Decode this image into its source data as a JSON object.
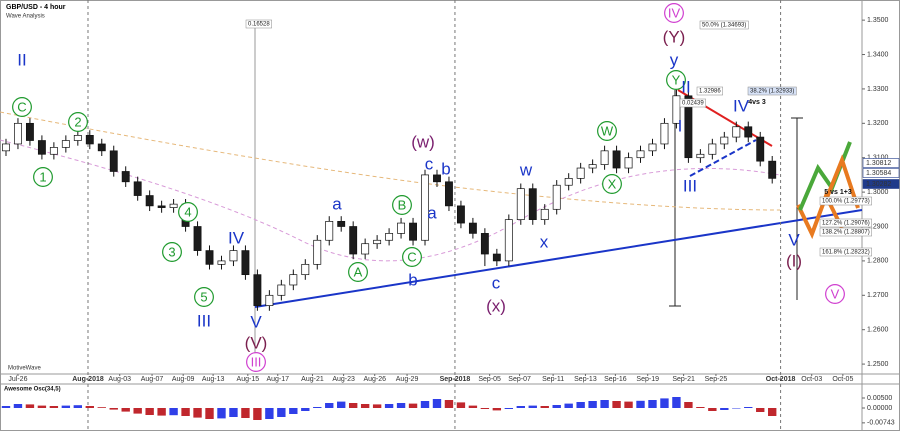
{
  "chart_data": {
    "type": "candlestick",
    "title": "GBP/USD - 4 hour",
    "subtitle": "Wave Analysis",
    "watermark": "MotiveWave",
    "up_color": "#ffffff",
    "down_color": "#1c1c1c",
    "series": {
      "open": [
        1.312,
        1.314,
        1.32,
        1.315,
        1.311,
        1.313,
        1.315,
        1.3165,
        1.314,
        1.312,
        1.306,
        1.303,
        1.299,
        1.296,
        1.2955,
        1.2965,
        1.29,
        1.283,
        1.279,
        1.28,
        1.283,
        1.276,
        1.267,
        1.27,
        1.273,
        1.276,
        1.279,
        1.286,
        1.2915,
        1.29,
        1.282,
        1.285,
        1.286,
        1.288,
        1.291,
        1.286,
        1.305,
        1.303,
        1.296,
        1.291,
        1.288,
        1.282,
        1.28,
        1.292,
        1.301,
        1.292,
        1.295,
        1.302,
        1.304,
        1.307,
        1.308,
        1.312,
        1.307,
        1.31,
        1.312,
        1.314,
        1.32,
        1.328,
        1.31,
        1.311,
        1.314,
        1.316,
        1.319,
        1.316,
        1.309
      ],
      "high": [
        1.3155,
        1.3215,
        1.3215,
        1.3165,
        1.3145,
        1.3165,
        1.318,
        1.318,
        1.3155,
        1.3135,
        1.3075,
        1.3045,
        1.3005,
        1.2975,
        1.298,
        1.298,
        1.2915,
        1.2845,
        1.2815,
        1.2845,
        1.2845,
        1.2775,
        1.2715,
        1.2745,
        1.2775,
        1.2805,
        1.2875,
        1.293,
        1.293,
        1.2915,
        1.2865,
        1.2875,
        1.2895,
        1.2925,
        1.2925,
        1.3065,
        1.3065,
        1.3045,
        1.2975,
        1.2925,
        1.2895,
        1.2835,
        1.2935,
        1.3025,
        1.3025,
        1.2965,
        1.3035,
        1.3055,
        1.3085,
        1.3095,
        1.3135,
        1.3135,
        1.3115,
        1.3135,
        1.3155,
        1.3215,
        1.33,
        1.3295,
        1.3125,
        1.3155,
        1.3175,
        1.3205,
        1.3205,
        1.3175,
        1.3105
      ],
      "low": [
        1.3105,
        1.3125,
        1.3135,
        1.3095,
        1.3095,
        1.3115,
        1.3135,
        1.3125,
        1.3105,
        1.3045,
        1.3015,
        1.2975,
        1.2945,
        1.294,
        1.294,
        1.2885,
        1.2815,
        1.2775,
        1.2775,
        1.2785,
        1.2745,
        1.2655,
        1.2655,
        1.2685,
        1.2715,
        1.2745,
        1.2775,
        1.2845,
        1.2885,
        1.2805,
        1.2805,
        1.2835,
        1.2845,
        1.2865,
        1.2845,
        1.2845,
        1.3015,
        1.2945,
        1.2895,
        1.2865,
        1.2785,
        1.2785,
        1.2785,
        1.2905,
        1.2905,
        1.2905,
        1.2935,
        1.3005,
        1.3025,
        1.3055,
        1.3065,
        1.3055,
        1.3055,
        1.3085,
        1.3105,
        1.3125,
        1.3185,
        1.3085,
        1.3085,
        1.3095,
        1.3125,
        1.3145,
        1.3145,
        1.3075,
        1.3025
      ],
      "close": [
        1.314,
        1.32,
        1.315,
        1.311,
        1.313,
        1.315,
        1.3165,
        1.314,
        1.312,
        1.306,
        1.303,
        1.299,
        1.296,
        1.2955,
        1.2965,
        1.29,
        1.283,
        1.279,
        1.28,
        1.283,
        1.276,
        1.267,
        1.27,
        1.273,
        1.276,
        1.279,
        1.286,
        1.2915,
        1.29,
        1.282,
        1.285,
        1.286,
        1.288,
        1.291,
        1.286,
        1.305,
        1.303,
        1.296,
        1.291,
        1.288,
        1.282,
        1.28,
        1.292,
        1.301,
        1.292,
        1.295,
        1.302,
        1.304,
        1.307,
        1.308,
        1.312,
        1.307,
        1.31,
        1.312,
        1.314,
        1.32,
        1.328,
        1.31,
        1.311,
        1.314,
        1.316,
        1.319,
        1.316,
        1.309,
        1.304
      ]
    },
    "ylim": [
      1.2477,
      1.3544
    ],
    "yticks": [
      {
        "value": 1.35,
        "label": "1.3500"
      },
      {
        "value": 1.34,
        "label": "1.3400"
      },
      {
        "value": 1.33,
        "label": "1.3300"
      },
      {
        "value": 1.32,
        "label": "1.3200"
      },
      {
        "value": 1.31,
        "label": "1.3100"
      },
      {
        "value": 1.3,
        "label": "1.3000"
      },
      {
        "value": 1.29,
        "label": "1.2900"
      },
      {
        "value": 1.28,
        "label": "1.2800"
      },
      {
        "value": 1.27,
        "label": "1.2700"
      },
      {
        "value": 1.26,
        "label": "1.2600"
      },
      {
        "value": 1.25,
        "label": "1.2500"
      }
    ],
    "xlim": [
      -0.5,
      71.5
    ],
    "xticks": [
      {
        "value": 1,
        "label": "Jul-26"
      },
      {
        "value": 9.5,
        "label": "Aug-03"
      },
      {
        "value": 12.2,
        "label": "Aug-07"
      },
      {
        "value": 14.8,
        "label": "Aug-09"
      },
      {
        "value": 17.3,
        "label": "Aug-13"
      },
      {
        "value": 20.2,
        "label": "Aug-15"
      },
      {
        "value": 22.7,
        "label": "Aug-17"
      },
      {
        "value": 25.6,
        "label": "Aug-21"
      },
      {
        "value": 28.2,
        "label": "Aug-23"
      },
      {
        "value": 30.8,
        "label": "Aug-26"
      },
      {
        "value": 33.5,
        "label": "Aug-29"
      },
      {
        "value": 40.4,
        "label": "Sep-05"
      },
      {
        "value": 42.9,
        "label": "Sep-07"
      },
      {
        "value": 45.7,
        "label": "Sep-11"
      },
      {
        "value": 48.4,
        "label": "Sep-13"
      },
      {
        "value": 50.9,
        "label": "Sep-16"
      },
      {
        "value": 53.6,
        "label": "Sep-19"
      },
      {
        "value": 56.6,
        "label": "Sep-21"
      },
      {
        "value": 59.3,
        "label": "Sep-25"
      },
      {
        "value": 67.3,
        "label": "Oct-03"
      },
      {
        "value": 69.9,
        "label": "Oct-05"
      }
    ],
    "month_xticks": [
      {
        "value": 6.85,
        "label": "Aug-2018"
      },
      {
        "value": 37.5,
        "label": "Sep-2018"
      },
      {
        "value": 64.7,
        "label": "Oct-2018"
      }
    ],
    "price_labels": [
      "1.30812",
      "1.30584",
      "1.30282"
    ],
    "fib_labels": [
      "50.0% (1.34693)",
      "1.32986",
      "38.2% (1.32933)",
      "0.02439",
      "0.16528",
      "100.0% (1.29773)",
      "127.2% (1.29076)",
      "138.2% (1.28807)",
      "161.8% (1.28232)"
    ],
    "annotations": [
      {
        "text": "II",
        "color": "#1a35c8",
        "circled": false
      },
      {
        "text": "C",
        "color": "#1f9a2e",
        "circled": true
      },
      {
        "text": "1",
        "color": "#1f9a2e",
        "circled": true
      },
      {
        "text": "2",
        "color": "#1f9a2e",
        "circled": true
      },
      {
        "text": "3",
        "color": "#1f9a2e",
        "circled": true
      },
      {
        "text": "4",
        "color": "#1f9a2e",
        "circled": true
      },
      {
        "text": "5",
        "color": "#1f9a2e",
        "circled": true
      },
      {
        "text": "III",
        "color": "#1a35c8",
        "circled": false
      },
      {
        "text": "IV",
        "color": "#1a35c8",
        "circled": false
      },
      {
        "text": "V",
        "color": "#1a35c8",
        "circled": false
      },
      {
        "text": "(V)",
        "color": "#7a1f4e",
        "circled": false
      },
      {
        "text": "III",
        "color": "#d040d0",
        "circled": true
      },
      {
        "text": "a",
        "color": "#1a35c8",
        "circled": false
      },
      {
        "text": "A",
        "color": "#1f9a2e",
        "circled": true
      },
      {
        "text": "b",
        "color": "#1a35c8",
        "circled": false
      },
      {
        "text": "B",
        "color": "#1f9a2e",
        "circled": true
      },
      {
        "text": "C",
        "color": "#1f9a2e",
        "circled": true
      },
      {
        "text": "a",
        "color": "#1a35c8",
        "circled": false
      },
      {
        "text": "(w)",
        "color": "#7a1f6e",
        "circled": false
      },
      {
        "text": "c",
        "color": "#1a35c8",
        "circled": false
      },
      {
        "text": "b",
        "color": "#1a35c8",
        "circled": false
      },
      {
        "text": "w",
        "color": "#1a35c8",
        "circled": false
      },
      {
        "text": "x",
        "color": "#1a35c8",
        "circled": false
      },
      {
        "text": "c",
        "color": "#1a35c8",
        "circled": false
      },
      {
        "text": "(x)",
        "color": "#7a1f6e",
        "circled": false
      },
      {
        "text": "W",
        "color": "#1f9a2e",
        "circled": true
      },
      {
        "text": "X",
        "color": "#1f9a2e",
        "circled": true
      },
      {
        "text": "IV",
        "color": "#d040d0",
        "circled": true
      },
      {
        "text": "(Y)",
        "color": "#7a1f4e",
        "circled": false
      },
      {
        "text": "y",
        "color": "#1a35c8",
        "circled": false
      },
      {
        "text": "Y",
        "color": "#1f9a2e",
        "circled": true
      },
      {
        "text": "II",
        "color": "#1a35c8",
        "circled": false
      },
      {
        "text": "I",
        "color": "#1a35c8",
        "circled": false
      },
      {
        "text": "III",
        "color": "#1a35c8",
        "circled": false
      },
      {
        "text": "IV",
        "color": "#1a35c8",
        "circled": false
      },
      {
        "text": "V",
        "color": "#1a35c8",
        "circled": false
      },
      {
        "text": "(I)",
        "color": "#7a1f4e",
        "circled": false
      },
      {
        "text": "V",
        "color": "#d040d0",
        "circled": true
      },
      {
        "text": "4vs 3",
        "color": "#111111",
        "circled": false
      },
      {
        "text": "5 vs 1+3",
        "color": "#111111",
        "circled": false
      }
    ],
    "indicator": {
      "type": "bar",
      "name": "Awesome Osc(34,5)",
      "up_color": "#2f3fe8",
      "down_color": "#c0272d",
      "values": [
        0.001,
        0.002,
        0.0018,
        0.0012,
        0.001,
        0.0012,
        0.0014,
        0.001,
        0.0004,
        -0.0008,
        -0.0018,
        -0.0028,
        -0.0035,
        -0.0038,
        -0.0036,
        -0.004,
        -0.0048,
        -0.0055,
        -0.0052,
        -0.0045,
        -0.005,
        -0.006,
        -0.0055,
        -0.0045,
        -0.003,
        -0.0015,
        0.0005,
        0.0025,
        0.0032,
        0.0025,
        0.002,
        0.0018,
        0.002,
        0.0025,
        0.0022,
        0.0035,
        0.0045,
        0.004,
        0.0028,
        0.0012,
        -0.0005,
        -0.0012,
        -0.0005,
        0.001,
        0.0012,
        0.001,
        0.0015,
        0.0022,
        0.003,
        0.0035,
        0.004,
        0.0035,
        0.0032,
        0.0036,
        0.004,
        0.0048,
        0.0055,
        0.003,
        0.0005,
        -0.0015,
        -0.001,
        -0.0002,
        0.0005,
        -0.002,
        -0.004
      ],
      "ylim": [
        -0.01,
        0.011
      ],
      "yticks": [
        {
          "value": 0.005,
          "label": "0.00500"
        },
        {
          "value": 0,
          "label": "0.00000"
        },
        {
          "value": -0.00743,
          "label": "-0.00743"
        }
      ]
    }
  }
}
